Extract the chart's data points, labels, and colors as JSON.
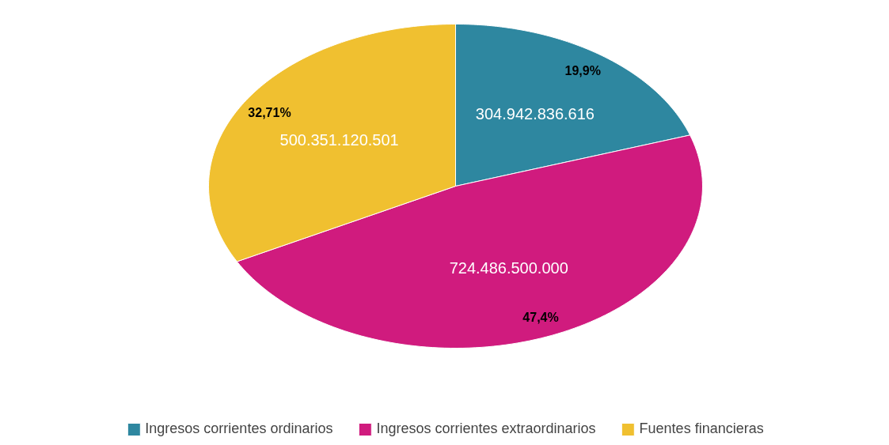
{
  "chart_data": {
    "type": "pie",
    "categories": [
      "Ingresos corrientes ordinarios",
      "Ingresos corrientes extraordinarios",
      "Fuentes financieras"
    ],
    "values": [
      19.9,
      47.4,
      32.71
    ],
    "colors": [
      "#2e87a0",
      "#d01b7e",
      "#f0c030"
    ],
    "value_labels": [
      "19,9%",
      "47,4%",
      "32,71%"
    ],
    "annotations": [
      "304.942.836.616",
      "724.486.500.000",
      "500.351.120.501"
    ],
    "legend": "bottom"
  }
}
